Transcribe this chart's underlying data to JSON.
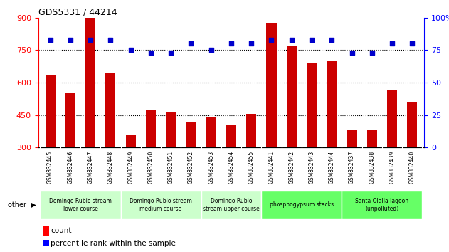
{
  "title": "GDS5331 / 44214",
  "categories": [
    "GSM832445",
    "GSM832446",
    "GSM832447",
    "GSM832448",
    "GSM832449",
    "GSM832450",
    "GSM832451",
    "GSM832452",
    "GSM832453",
    "GSM832454",
    "GSM832455",
    "GSM832441",
    "GSM832442",
    "GSM832443",
    "GSM832444",
    "GSM832437",
    "GSM832438",
    "GSM832439",
    "GSM832440"
  ],
  "counts": [
    635,
    555,
    900,
    645,
    360,
    475,
    462,
    420,
    440,
    405,
    455,
    875,
    768,
    693,
    700,
    383,
    383,
    565,
    510
  ],
  "percentiles": [
    83,
    83,
    83,
    83,
    75,
    73,
    73,
    80,
    75,
    80,
    80,
    83,
    83,
    83,
    83,
    73,
    73,
    80,
    80
  ],
  "bar_color": "#cc0000",
  "dot_color": "#0000cc",
  "ylim_left": [
    300,
    900
  ],
  "ylim_right": [
    0,
    100
  ],
  "yticks_left": [
    300,
    450,
    600,
    750,
    900
  ],
  "yticks_right": [
    0,
    25,
    50,
    75,
    100
  ],
  "gridlines": [
    450,
    600,
    750
  ],
  "groups": [
    {
      "label": "Domingo Rubio stream\nlower course",
      "start": 0,
      "end": 3,
      "color": "#ccffcc"
    },
    {
      "label": "Domingo Rubio stream\nmedium course",
      "start": 4,
      "end": 7,
      "color": "#ccffcc"
    },
    {
      "label": "Domingo Rubio\nstream upper course",
      "start": 8,
      "end": 10,
      "color": "#ccffcc"
    },
    {
      "label": "phosphogypsum stacks",
      "start": 11,
      "end": 14,
      "color": "#66ff66"
    },
    {
      "label": "Santa Olalla lagoon\n(unpolluted)",
      "start": 15,
      "end": 18,
      "color": "#66ff66"
    }
  ]
}
